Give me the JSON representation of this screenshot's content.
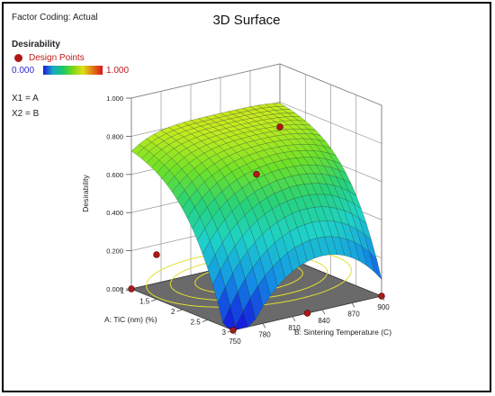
{
  "header": {
    "factor_coding": "Factor Coding: Actual",
    "title": "3D Surface"
  },
  "legend": {
    "response": "Desirability",
    "design_points": "Design Points",
    "scale_min": "0.000",
    "scale_max": "1.000",
    "x1": "X1 = A",
    "x2": "X2 = B"
  },
  "colors": {
    "design_point": "#b01818",
    "frame": "#000000",
    "contour": "#e0e030"
  },
  "chart_data": {
    "type": "surface",
    "zlabel": "Desirability",
    "z_ticks": [
      "0.000",
      "0.200",
      "0.400",
      "0.600",
      "0.800",
      "1.000"
    ],
    "zlim": [
      0,
      1
    ],
    "a_label": "A: TiC (nm)  (%)",
    "a_ticks": [
      "1",
      "1.5",
      "2",
      "2.5",
      "3"
    ],
    "a_range": [
      1,
      3
    ],
    "b_label": "B: Sintering Temperature (C)",
    "b_ticks": [
      "750",
      "780",
      "810",
      "840",
      "870",
      "900"
    ],
    "b_range": [
      750,
      900
    ],
    "design_points": [
      {
        "a": 3,
        "b": 750,
        "d": 0.0
      },
      {
        "a": 3,
        "b": 900,
        "d": 0.0
      },
      {
        "a": 1,
        "b": 750,
        "d": 0.0
      },
      {
        "a": 2,
        "b": 825,
        "d": 0.62
      },
      {
        "a": 1,
        "b": 900,
        "d": 0.67
      },
      {
        "a": 3,
        "b": 825,
        "d": 0.0
      },
      {
        "a": 1.3,
        "b": 760,
        "d": 0.2
      }
    ]
  }
}
